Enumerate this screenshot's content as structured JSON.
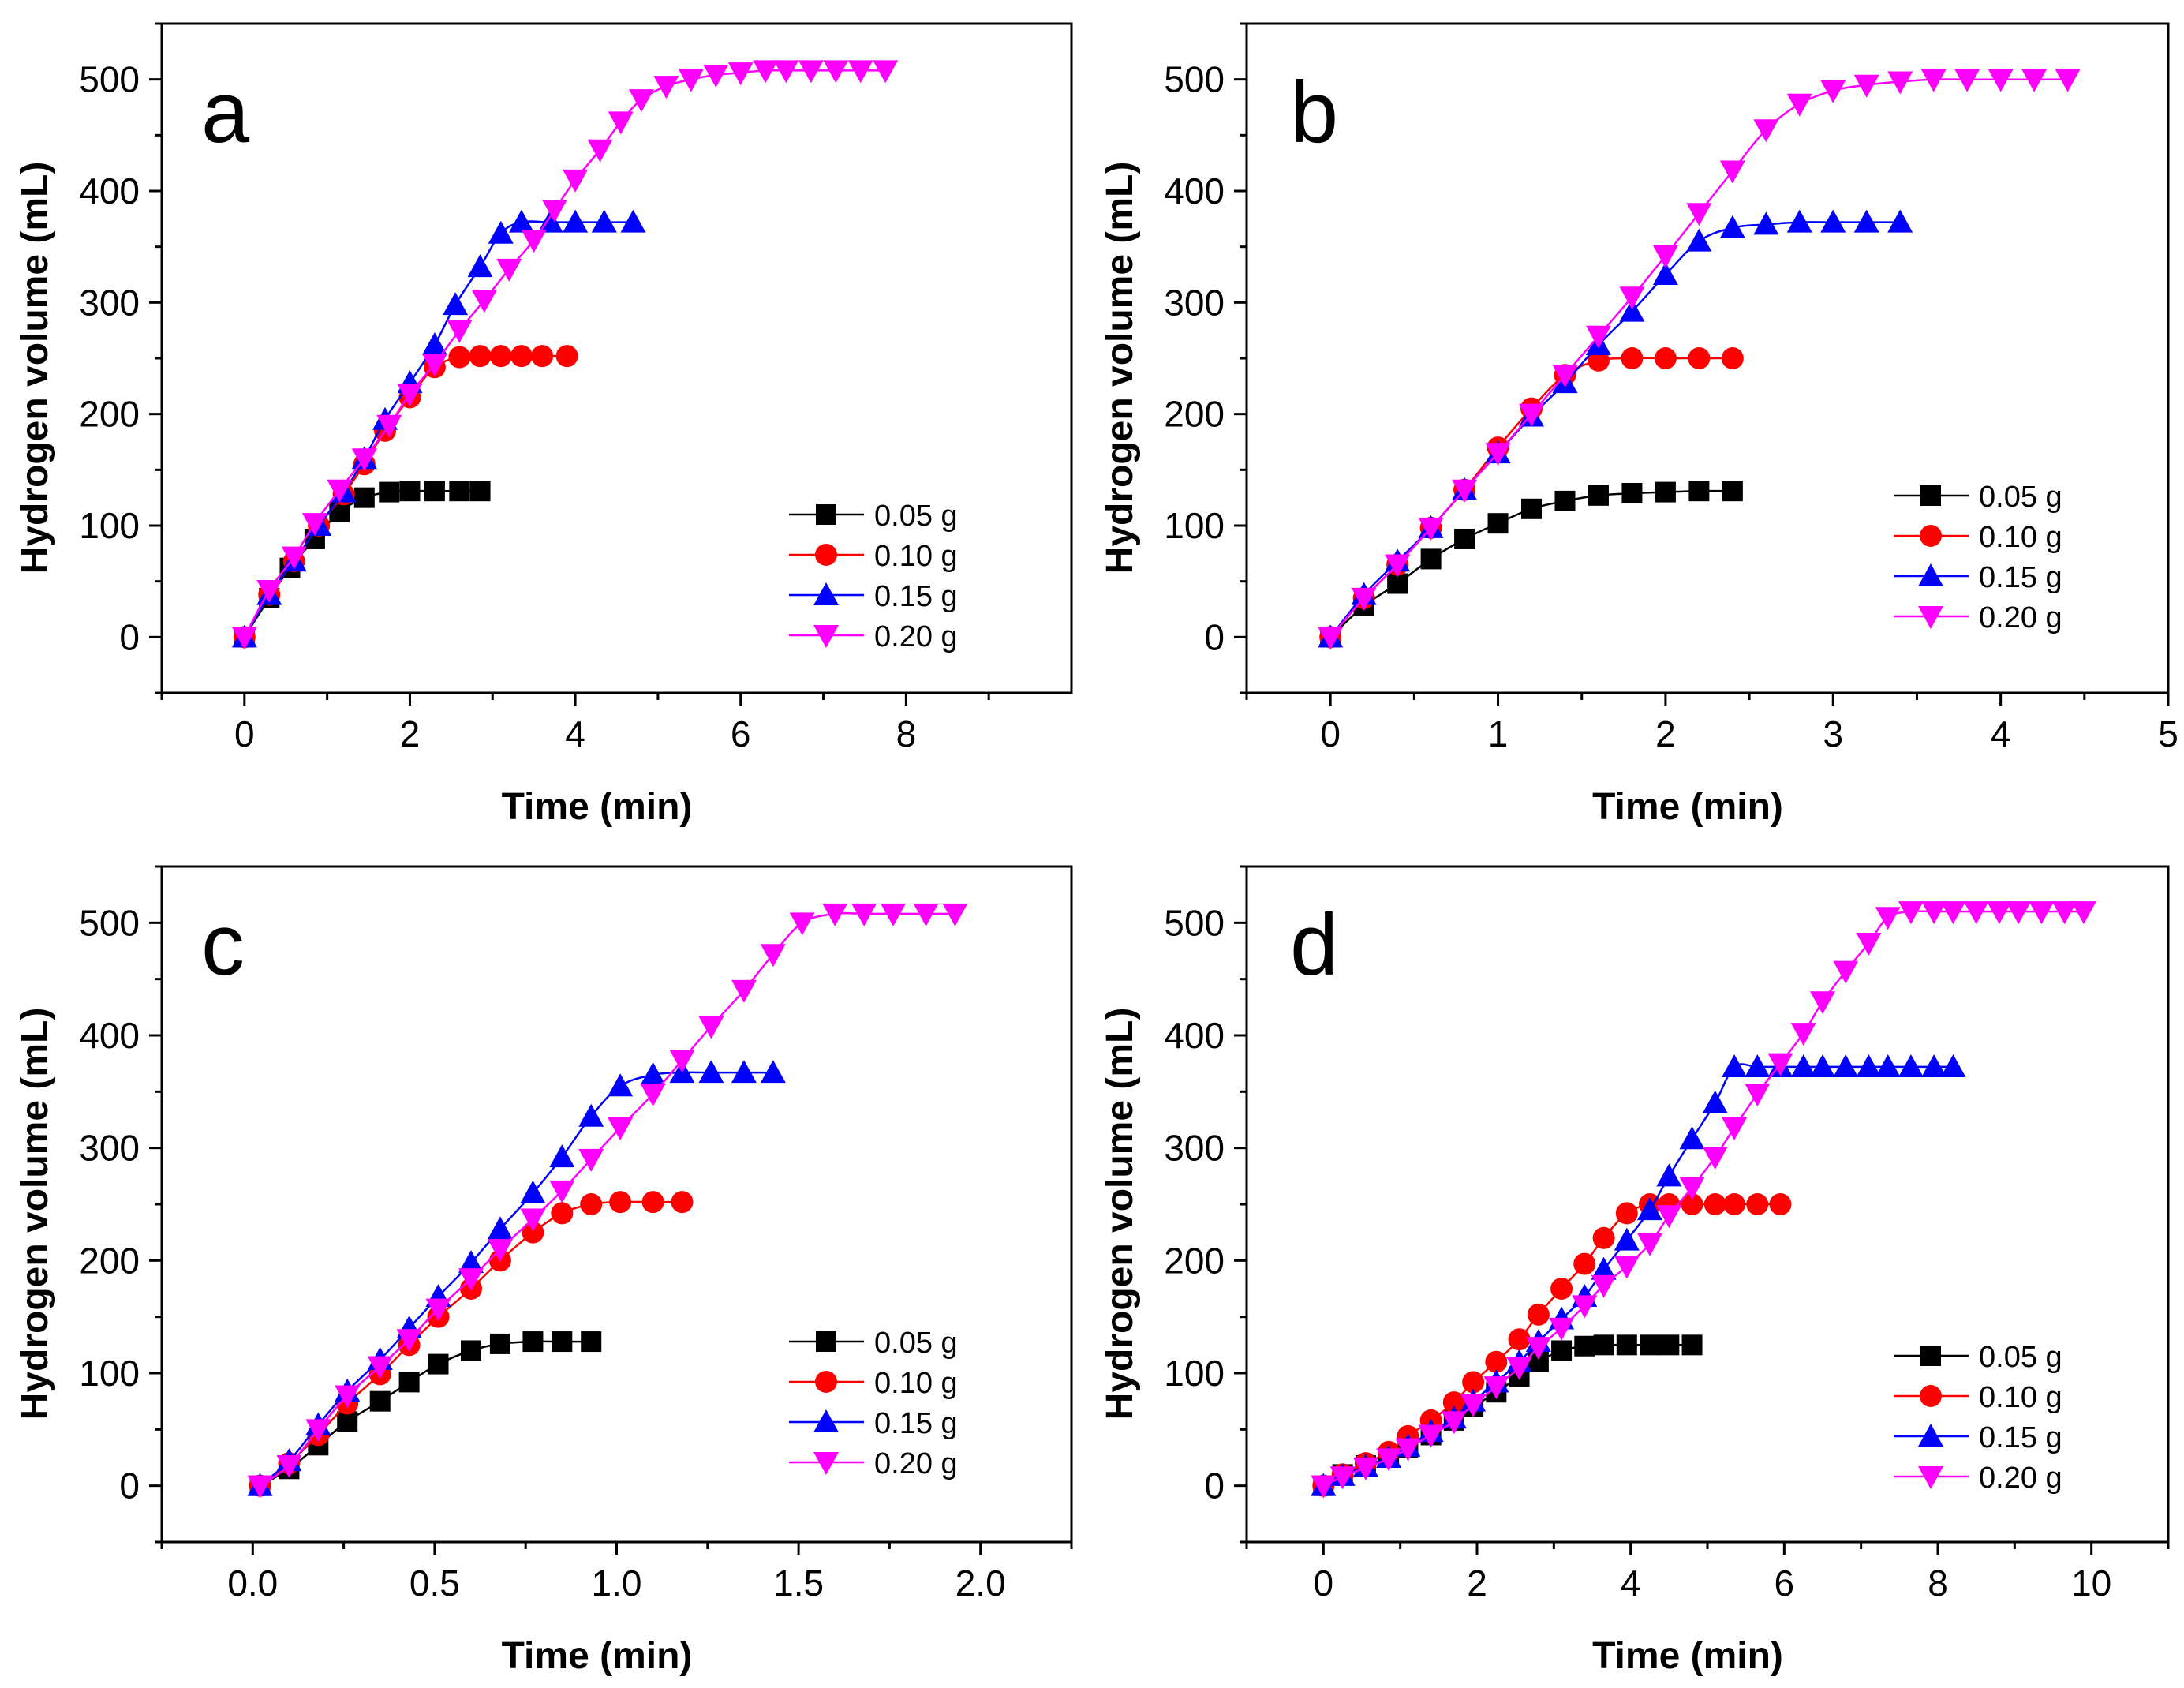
{
  "chart_data": [
    {
      "type": "line",
      "panel_label": "a",
      "xlabel": "Time (min)",
      "ylabel": "Hydrogen volume (mL)",
      "xlim": [
        -1,
        10
      ],
      "ylim": [
        -50,
        550
      ],
      "xticks": [
        0,
        2,
        4,
        6,
        8
      ],
      "xtick_labels": [
        "0",
        "2",
        "4",
        "6",
        "8"
      ],
      "yticks": [
        0,
        100,
        200,
        300,
        400,
        500
      ],
      "ytick_labels": [
        "0",
        "100",
        "200",
        "300",
        "400",
        "500"
      ],
      "legend_position": "bottom-right",
      "series": [
        {
          "name": "0.05 g",
          "color": "#000000",
          "marker": "square",
          "x": [
            0,
            0.3,
            0.55,
            0.85,
            1.15,
            1.45,
            1.75,
            2.0,
            2.3,
            2.6,
            2.85
          ],
          "y": [
            0,
            35,
            62,
            88,
            112,
            125,
            130,
            131,
            131,
            131,
            131
          ]
        },
        {
          "name": "0.10 g",
          "color": "#ff0000",
          "marker": "circle",
          "x": [
            0,
            0.3,
            0.6,
            0.9,
            1.2,
            1.45,
            1.7,
            2.0,
            2.3,
            2.6,
            2.85,
            3.1,
            3.35,
            3.6,
            3.9
          ],
          "y": [
            0,
            38,
            68,
            100,
            128,
            155,
            185,
            215,
            242,
            251,
            252,
            252,
            252,
            252,
            252
          ]
        },
        {
          "name": "0.15 g",
          "color": "#0000ff",
          "marker": "triangle-up",
          "x": [
            0,
            0.3,
            0.6,
            0.9,
            1.2,
            1.45,
            1.7,
            2.0,
            2.3,
            2.55,
            2.85,
            3.1,
            3.35,
            3.7,
            4.0,
            4.35,
            4.7
          ],
          "y": [
            0,
            38,
            68,
            100,
            130,
            160,
            195,
            228,
            262,
            298,
            332,
            362,
            372,
            372,
            372,
            372,
            372
          ]
        },
        {
          "name": "0.20 g",
          "color": "#ff00ff",
          "marker": "triangle-down",
          "x": [
            0,
            0.3,
            0.6,
            0.85,
            1.15,
            1.45,
            1.75,
            2.0,
            2.3,
            2.6,
            2.9,
            3.2,
            3.5,
            3.75,
            4.0,
            4.3,
            4.55,
            4.8,
            5.1,
            5.4,
            5.7,
            6.0,
            6.3,
            6.55,
            6.85,
            7.15,
            7.45,
            7.75
          ],
          "y": [
            0,
            42,
            72,
            102,
            132,
            160,
            190,
            218,
            245,
            275,
            302,
            330,
            356,
            383,
            410,
            437,
            462,
            482,
            494,
            500,
            504,
            506,
            508,
            508,
            508,
            508,
            508,
            508
          ]
        }
      ]
    },
    {
      "type": "line",
      "panel_label": "b",
      "xlabel": "Time (min)",
      "ylabel": "Hydrogen volume (mL)",
      "xlim": [
        -0.5,
        5
      ],
      "ylim": [
        -50,
        550
      ],
      "xticks": [
        0,
        1,
        2,
        3,
        4,
        5
      ],
      "xtick_labels": [
        "0",
        "1",
        "2",
        "3",
        "4",
        "5"
      ],
      "yticks": [
        0,
        100,
        200,
        300,
        400,
        500
      ],
      "ytick_labels": [
        "0",
        "100",
        "200",
        "300",
        "400",
        "500"
      ],
      "legend_position": "bottom-right",
      "series": [
        {
          "name": "0.05 g",
          "color": "#000000",
          "marker": "square",
          "x": [
            0,
            0.2,
            0.4,
            0.6,
            0.8,
            1.0,
            1.2,
            1.4,
            1.6,
            1.8,
            2.0,
            2.2,
            2.4
          ],
          "y": [
            0,
            28,
            48,
            70,
            88,
            102,
            115,
            122,
            127,
            129,
            130,
            131,
            131
          ]
        },
        {
          "name": "0.10 g",
          "color": "#ff0000",
          "marker": "circle",
          "x": [
            0,
            0.2,
            0.4,
            0.6,
            0.8,
            1.0,
            1.2,
            1.4,
            1.6,
            1.8,
            2.0,
            2.2,
            2.4
          ],
          "y": [
            0,
            35,
            65,
            98,
            132,
            170,
            205,
            235,
            248,
            250,
            250,
            250,
            250
          ]
        },
        {
          "name": "0.15 g",
          "color": "#0000ff",
          "marker": "triangle-up",
          "x": [
            0,
            0.2,
            0.4,
            0.6,
            0.8,
            1.0,
            1.2,
            1.4,
            1.6,
            1.8,
            2.0,
            2.2,
            2.4,
            2.6,
            2.8,
            3.0,
            3.2,
            3.4
          ],
          "y": [
            0,
            38,
            68,
            98,
            132,
            165,
            198,
            228,
            262,
            292,
            325,
            355,
            367,
            370,
            372,
            372,
            372,
            372
          ]
        },
        {
          "name": "0.20 g",
          "color": "#ff00ff",
          "marker": "triangle-down",
          "x": [
            0,
            0.2,
            0.4,
            0.6,
            0.8,
            1.0,
            1.2,
            1.4,
            1.6,
            1.8,
            2.0,
            2.2,
            2.4,
            2.6,
            2.8,
            3.0,
            3.2,
            3.4,
            3.6,
            3.8,
            4.0,
            4.2,
            4.4
          ],
          "y": [
            0,
            35,
            65,
            98,
            132,
            165,
            200,
            235,
            270,
            305,
            342,
            380,
            418,
            455,
            478,
            490,
            495,
            498,
            500,
            500,
            500,
            500,
            500
          ]
        }
      ]
    },
    {
      "type": "line",
      "panel_label": "c",
      "xlabel": "Time (min)",
      "ylabel": "Hydrogen volume (mL)",
      "xlim": [
        -0.25,
        2.25
      ],
      "ylim": [
        -50,
        550
      ],
      "xticks": [
        0,
        0.5,
        1,
        1.5,
        2
      ],
      "xtick_labels": [
        "0.0",
        "0.5",
        "1.0",
        "1.5",
        "2.0"
      ],
      "yticks": [
        0,
        100,
        200,
        300,
        400,
        500
      ],
      "ytick_labels": [
        "0",
        "100",
        "200",
        "300",
        "400",
        "500"
      ],
      "legend_position": "bottom-right",
      "series": [
        {
          "name": "0.05 g",
          "color": "#000000",
          "marker": "square",
          "x": [
            0.02,
            0.1,
            0.18,
            0.26,
            0.35,
            0.43,
            0.51,
            0.6,
            0.68,
            0.77,
            0.85,
            0.93
          ],
          "y": [
            0,
            15,
            36,
            57,
            75,
            92,
            108,
            120,
            126,
            128,
            128,
            128
          ]
        },
        {
          "name": "0.10 g",
          "color": "#ff0000",
          "marker": "circle",
          "x": [
            0.02,
            0.1,
            0.18,
            0.26,
            0.35,
            0.43,
            0.51,
            0.6,
            0.68,
            0.77,
            0.85,
            0.93,
            1.01,
            1.1,
            1.18
          ],
          "y": [
            0,
            20,
            45,
            73,
            99,
            125,
            150,
            175,
            200,
            225,
            242,
            250,
            252,
            252,
            252
          ]
        },
        {
          "name": "0.15 g",
          "color": "#0000ff",
          "marker": "triangle-up",
          "x": [
            0.02,
            0.1,
            0.18,
            0.26,
            0.35,
            0.43,
            0.51,
            0.6,
            0.68,
            0.77,
            0.85,
            0.93,
            1.01,
            1.1,
            1.18,
            1.26,
            1.35,
            1.43
          ],
          "y": [
            0,
            22,
            54,
            84,
            112,
            140,
            168,
            198,
            228,
            260,
            292,
            328,
            355,
            365,
            367,
            367,
            367,
            367
          ]
        },
        {
          "name": "0.20 g",
          "color": "#ff00ff",
          "marker": "triangle-down",
          "x": [
            0.02,
            0.1,
            0.18,
            0.26,
            0.35,
            0.43,
            0.51,
            0.6,
            0.68,
            0.77,
            0.85,
            0.93,
            1.01,
            1.1,
            1.18,
            1.26,
            1.35,
            1.43,
            1.51,
            1.6,
            1.68,
            1.76,
            1.85,
            1.93
          ],
          "y": [
            0,
            18,
            50,
            80,
            106,
            130,
            157,
            184,
            210,
            237,
            262,
            290,
            318,
            348,
            378,
            408,
            440,
            472,
            500,
            508,
            508,
            508,
            508,
            508
          ]
        }
      ]
    },
    {
      "type": "line",
      "panel_label": "d",
      "xlabel": "Time (min)",
      "ylabel": "Hydrogen volume (mL)",
      "xlim": [
        -1,
        11
      ],
      "ylim": [
        -50,
        550
      ],
      "xticks": [
        0,
        2,
        4,
        6,
        8,
        10
      ],
      "xtick_labels": [
        "0",
        "2",
        "4",
        "6",
        "8",
        "10"
      ],
      "yticks": [
        0,
        100,
        200,
        300,
        400,
        500
      ],
      "ytick_labels": [
        "0",
        "100",
        "200",
        "300",
        "400",
        "500"
      ],
      "legend_position": "bottom-right",
      "series": [
        {
          "name": "0.05 g",
          "color": "#000000",
          "marker": "square",
          "x": [
            0,
            0.25,
            0.55,
            0.85,
            1.1,
            1.4,
            1.7,
            1.95,
            2.25,
            2.55,
            2.8,
            3.1,
            3.4,
            3.65,
            3.95,
            4.25,
            4.5,
            4.8
          ],
          "y": [
            0,
            10,
            18,
            25,
            34,
            45,
            58,
            70,
            83,
            97,
            110,
            120,
            124,
            125,
            125,
            125,
            125,
            125
          ]
        },
        {
          "name": "0.10 g",
          "color": "#ff0000",
          "marker": "circle",
          "x": [
            0,
            0.25,
            0.55,
            0.85,
            1.1,
            1.4,
            1.7,
            1.95,
            2.25,
            2.55,
            2.8,
            3.1,
            3.4,
            3.65,
            3.95,
            4.25,
            4.5,
            4.8,
            5.1,
            5.35,
            5.65,
            5.95
          ],
          "y": [
            0,
            10,
            20,
            30,
            44,
            58,
            74,
            92,
            110,
            130,
            152,
            175,
            197,
            220,
            242,
            250,
            250,
            250,
            250,
            250,
            250,
            250
          ]
        },
        {
          "name": "0.15 g",
          "color": "#0000ff",
          "marker": "triangle-up",
          "x": [
            0,
            0.25,
            0.55,
            0.85,
            1.1,
            1.4,
            1.7,
            1.95,
            2.25,
            2.55,
            2.8,
            3.1,
            3.4,
            3.65,
            3.95,
            4.25,
            4.5,
            4.8,
            5.1,
            5.35,
            5.65,
            5.95,
            6.25,
            6.5,
            6.8,
            7.1,
            7.35,
            7.65,
            7.95,
            8.2
          ],
          "y": [
            0,
            9,
            17,
            25,
            35,
            48,
            60,
            75,
            92,
            110,
            128,
            148,
            168,
            192,
            218,
            245,
            275,
            308,
            340,
            372,
            372,
            372,
            372,
            372,
            372,
            372,
            372,
            372,
            372,
            372
          ]
        },
        {
          "name": "0.20 g",
          "color": "#ff00ff",
          "marker": "triangle-down",
          "x": [
            0,
            0.25,
            0.55,
            0.85,
            1.1,
            1.4,
            1.7,
            1.95,
            2.25,
            2.55,
            2.8,
            3.1,
            3.4,
            3.65,
            3.95,
            4.25,
            4.5,
            4.8,
            5.1,
            5.35,
            5.65,
            5.95,
            6.25,
            6.5,
            6.8,
            7.1,
            7.35,
            7.65,
            7.95,
            8.2,
            8.5,
            8.8,
            9.05,
            9.35,
            9.65,
            9.9
          ],
          "y": [
            0,
            8,
            16,
            24,
            33,
            45,
            57,
            72,
            88,
            105,
            123,
            140,
            160,
            178,
            195,
            215,
            240,
            265,
            292,
            318,
            348,
            375,
            402,
            430,
            457,
            482,
            505,
            510,
            510,
            510,
            510,
            510,
            510,
            510,
            510,
            510
          ]
        }
      ]
    }
  ]
}
